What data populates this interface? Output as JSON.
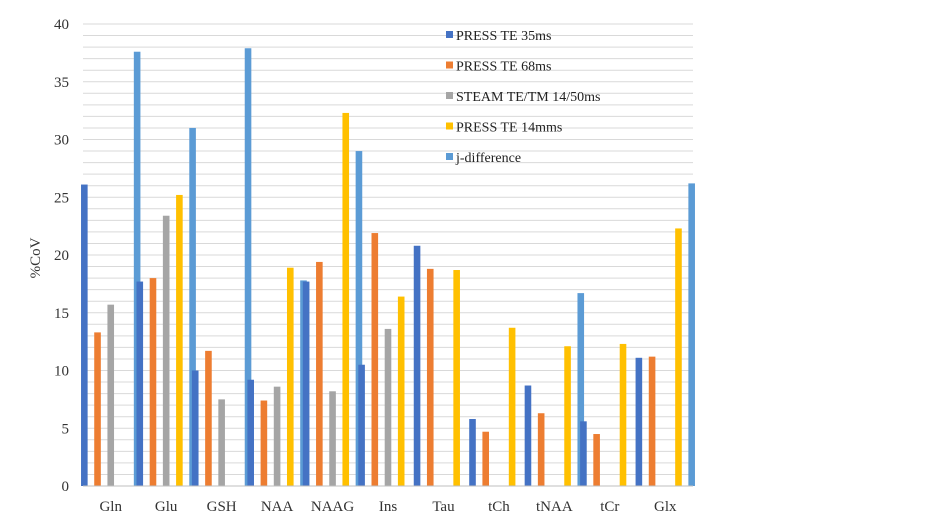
{
  "chart_data": {
    "type": "bar",
    "title": "",
    "xlabel": "",
    "ylabel": "%CoV",
    "ylim": [
      0,
      40
    ],
    "yticks": [
      "0",
      "5",
      "10",
      "15",
      "20",
      "25",
      "30",
      "35",
      "40"
    ],
    "grid": true,
    "legend_position": "top-right",
    "categories": [
      "Gln",
      "Glu",
      "GSH",
      "NAA",
      "NAAG",
      "Ins",
      "Tau",
      "tCh",
      "tNAA",
      "tCr",
      "Glx"
    ],
    "series": [
      {
        "name": "PRESS TE 35ms",
        "color": "#4472c4",
        "values": [
          26.1,
          17.7,
          10.0,
          9.2,
          17.7,
          10.5,
          20.8,
          5.8,
          8.7,
          5.6,
          11.1
        ]
      },
      {
        "name": "PRESS TE 68ms",
        "color": "#ed7d31",
        "values": [
          13.3,
          18.0,
          11.7,
          7.4,
          19.4,
          21.9,
          18.8,
          4.7,
          6.3,
          4.5,
          11.2
        ]
      },
      {
        "name": "STEAM TE/TM 14/50ms",
        "color": "#a5a5a5",
        "values": [
          15.7,
          23.4,
          7.5,
          8.6,
          8.2,
          13.6,
          null,
          null,
          null,
          null,
          null
        ]
      },
      {
        "name": "PRESS TE 14mms",
        "color": "#ffc000",
        "values": [
          null,
          25.2,
          null,
          18.9,
          32.3,
          16.4,
          18.7,
          13.7,
          12.1,
          12.3,
          22.3
        ]
      },
      {
        "name": "j-difference",
        "color": "#5b9bd5",
        "values": [
          37.6,
          31.0,
          37.9,
          17.8,
          29.0,
          null,
          null,
          null,
          16.7,
          null,
          26.2
        ]
      }
    ]
  }
}
